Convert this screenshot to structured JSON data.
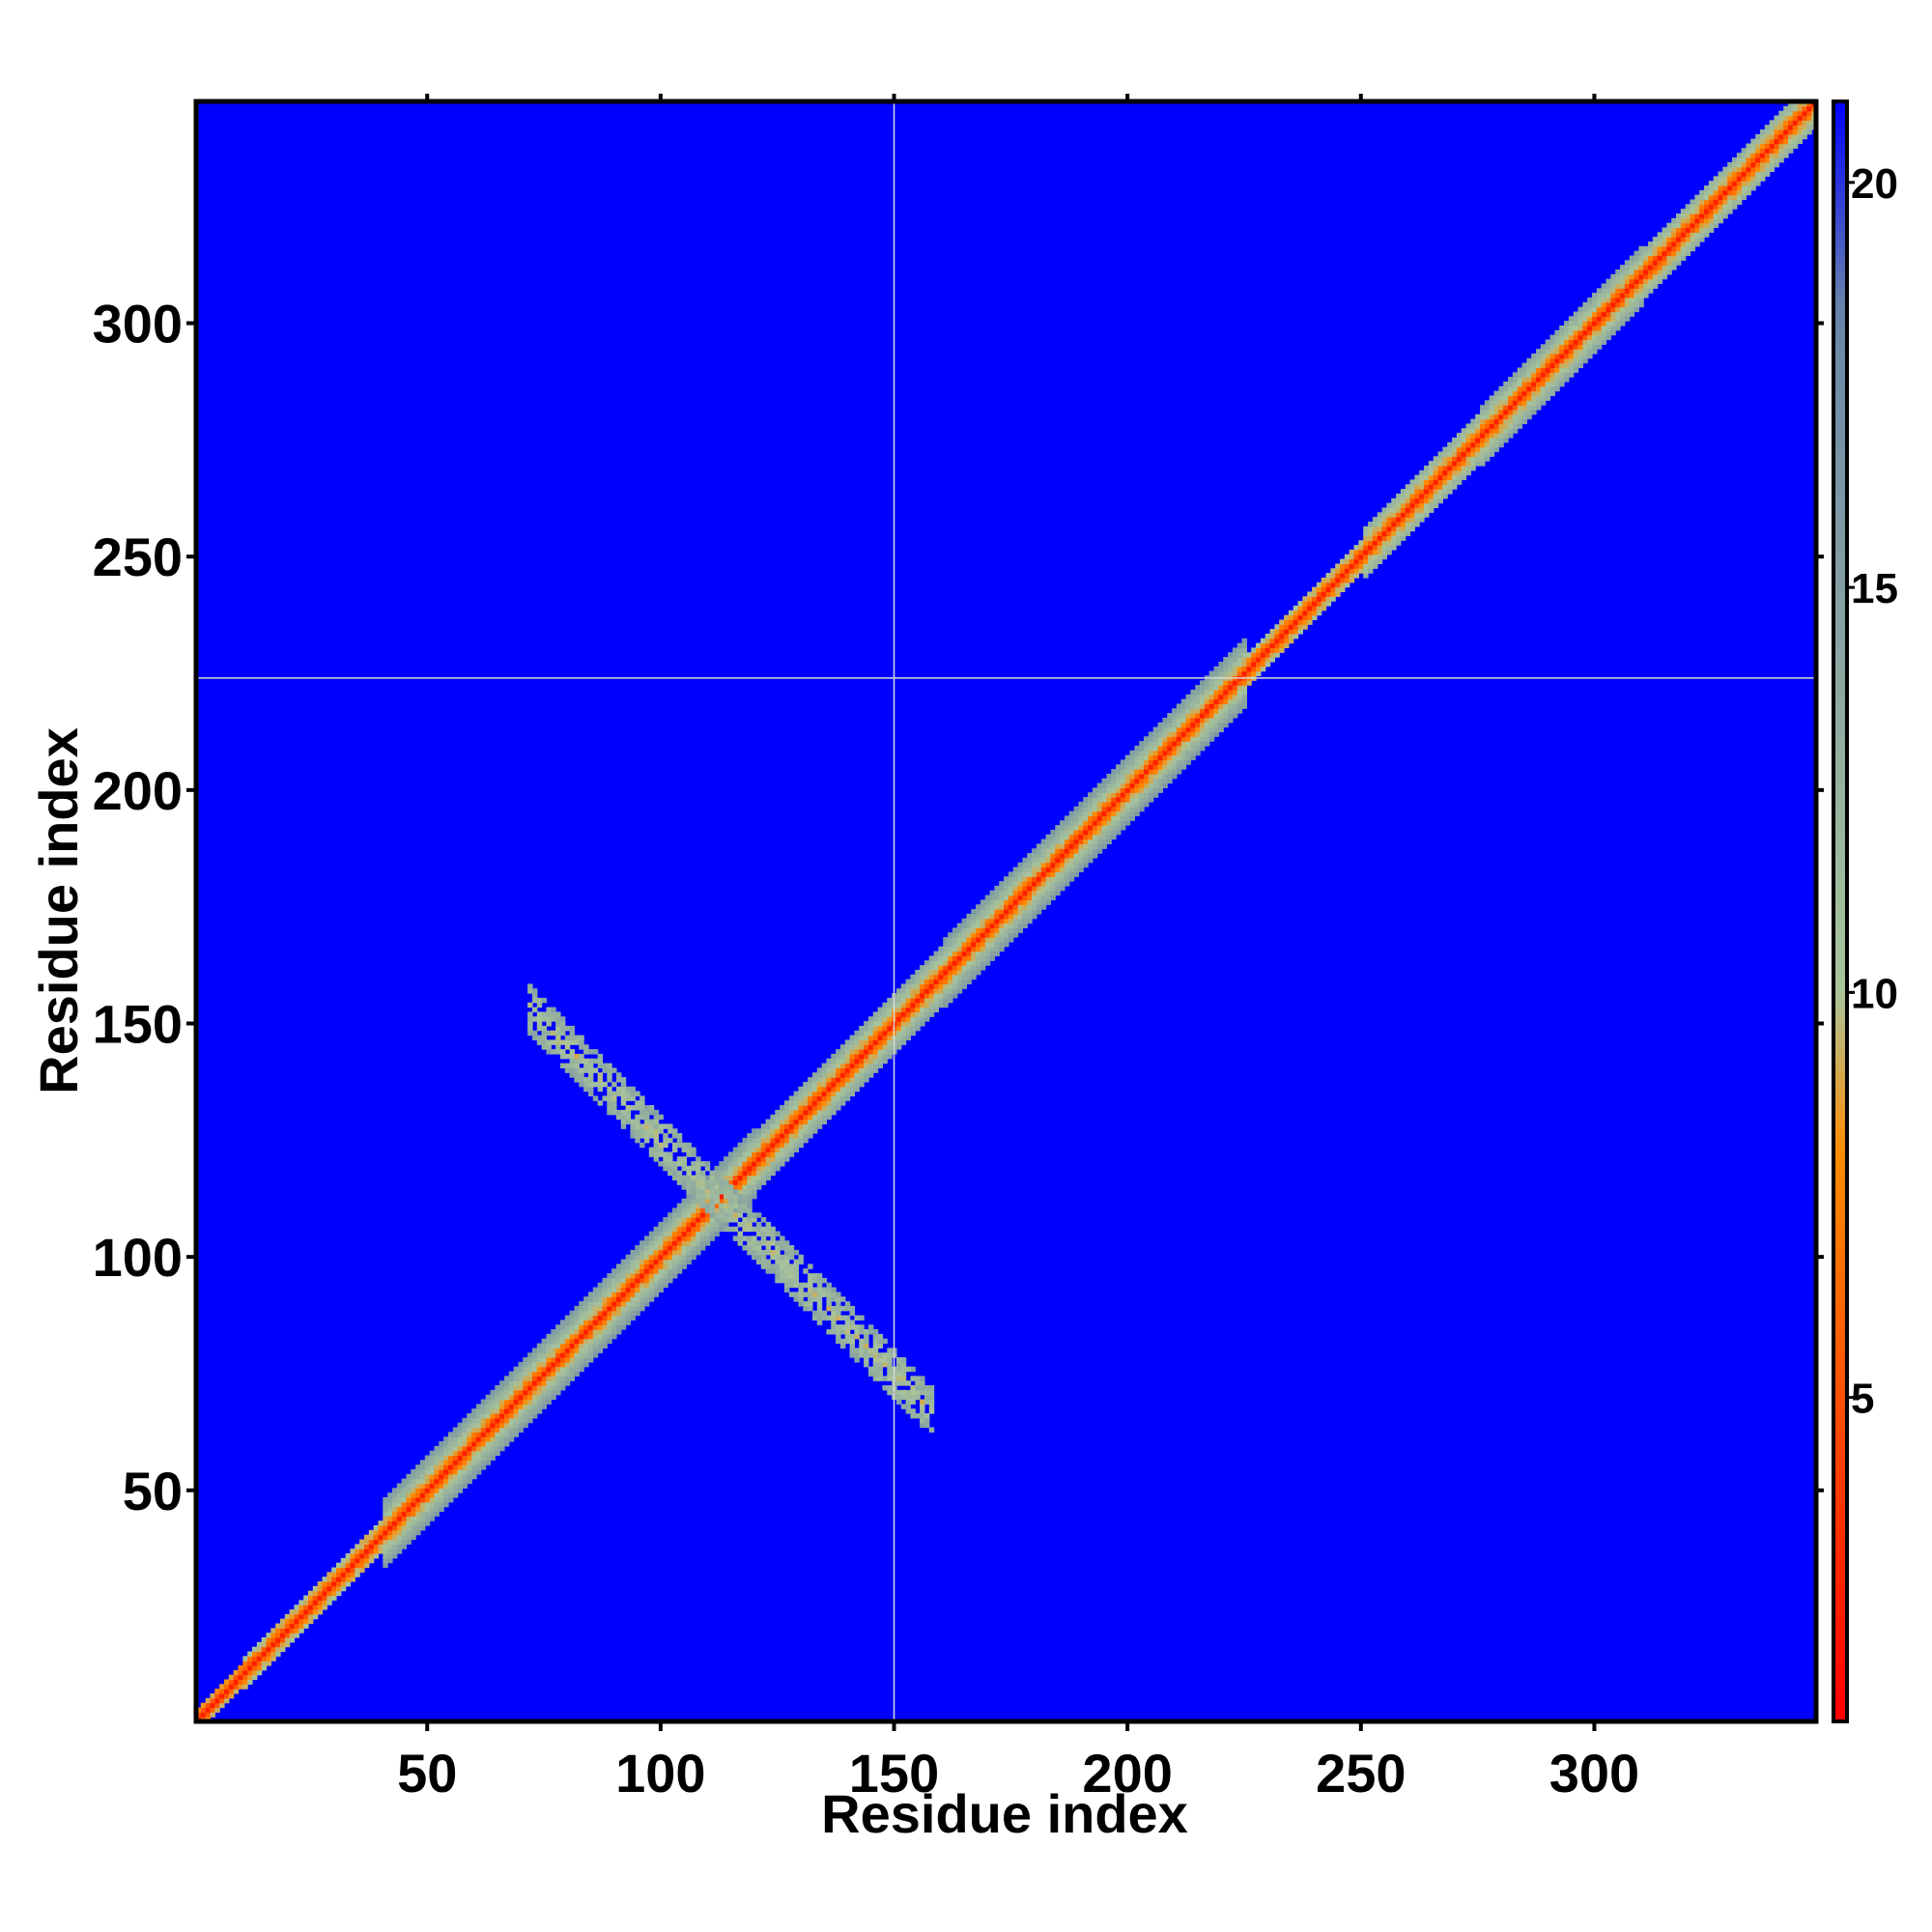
{
  "chart_data": {
    "type": "heatmap",
    "title": "",
    "xlabel": "Residue index",
    "ylabel": "Residue index",
    "n_residues": 347,
    "xlim": [
      0.5,
      347.5
    ],
    "ylim": [
      0.5,
      347.5
    ],
    "x_ticks": [
      50,
      100,
      150,
      200,
      250,
      300
    ],
    "y_ticks": [
      50,
      100,
      150,
      200,
      250,
      300
    ],
    "colorbar": {
      "range": [
        1,
        21
      ],
      "ticks": [
        5,
        10,
        15,
        20
      ],
      "colors": [
        "#ff0000",
        "#ff8c00",
        "#a9c49a",
        "#6a86a8",
        "#0000ff"
      ]
    },
    "background_value": 21,
    "crosshair": {
      "x": 150,
      "y": 224
    },
    "diagonal_band": [
      {
        "from": 1,
        "to": 10,
        "half_width": 2
      },
      {
        "from": 10,
        "to": 40,
        "half_width": 3
      },
      {
        "from": 40,
        "to": 120,
        "half_width": 7
      },
      {
        "from": 120,
        "to": 160,
        "half_width": 6
      },
      {
        "from": 160,
        "to": 225,
        "half_width": 7
      },
      {
        "from": 225,
        "to": 250,
        "half_width": 3
      },
      {
        "from": 250,
        "to": 275,
        "half_width": 5
      },
      {
        "from": 275,
        "to": 310,
        "half_width": 6
      },
      {
        "from": 310,
        "to": 347,
        "half_width": 5
      }
    ],
    "off_diagonal_contacts": [
      {
        "center": [
          115,
          110
        ],
        "direction": "anti-diagonal",
        "extent": [
          72,
          158
        ],
        "half_width": 5
      }
    ]
  }
}
